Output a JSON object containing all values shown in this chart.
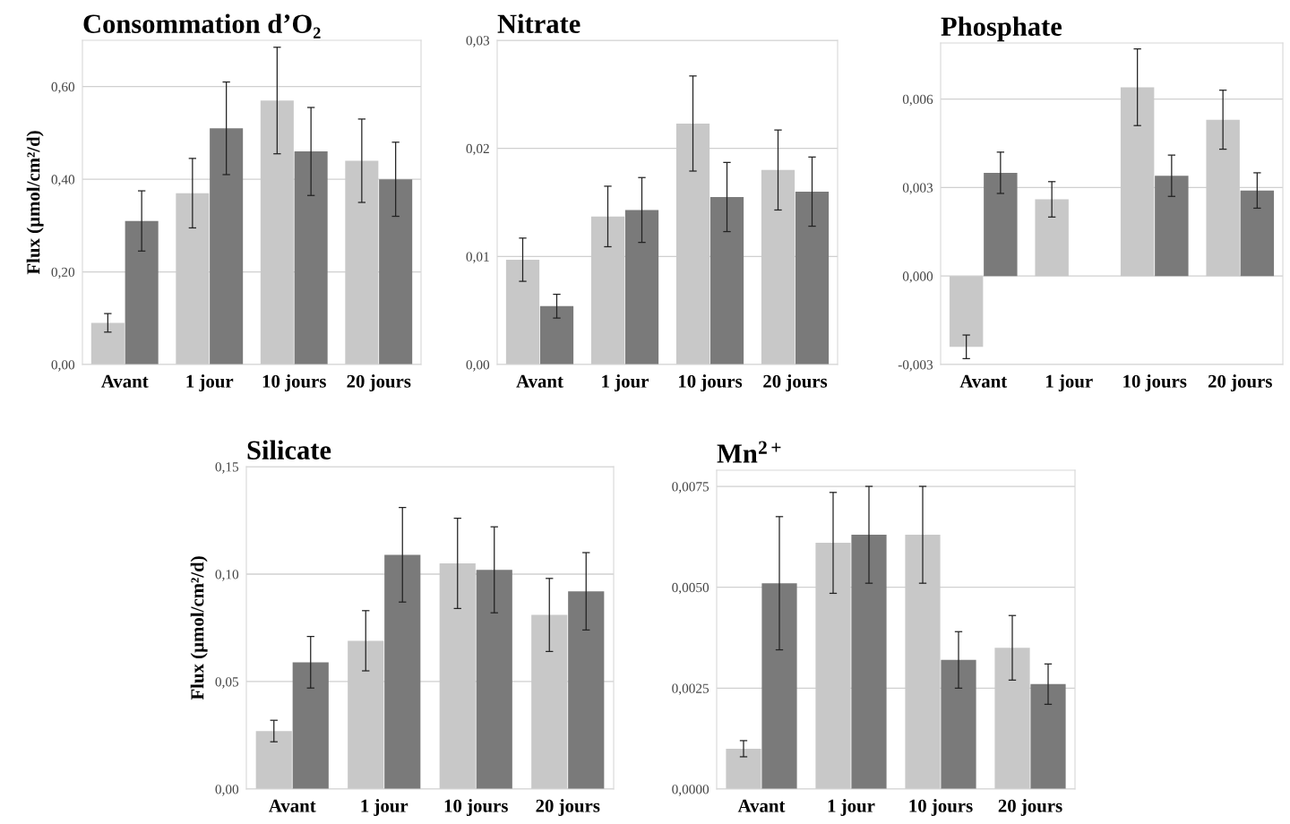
{
  "chart_data": [
    {
      "type": "bar",
      "title": "Consommation d’O₂",
      "ylabel": "Flux (µmol/cm²/d)",
      "categories": [
        "Avant",
        "1 jour",
        "10 jours",
        "20 jours"
      ],
      "ylim": [
        0,
        0.7
      ],
      "yticks": [
        {
          "value": 0,
          "label": "0,00"
        },
        {
          "value": 0.2,
          "label": "0,20"
        },
        {
          "value": 0.4,
          "label": "0,40"
        },
        {
          "value": 0.6,
          "label": "0,60"
        }
      ],
      "grid": "y",
      "series": [
        {
          "color": "#c8c8c8",
          "values": [
            0.09,
            0.37,
            0.57,
            0.44
          ],
          "errors": [
            0.02,
            0.075,
            0.115,
            0.09
          ]
        },
        {
          "color": "#7a7a7a",
          "values": [
            0.31,
            0.51,
            0.46,
            0.4
          ],
          "errors": [
            0.065,
            0.1,
            0.095,
            0.08
          ]
        }
      ]
    },
    {
      "type": "bar",
      "title": "Nitrate",
      "categories": [
        "Avant",
        "1 jour",
        "10 jours",
        "20 jours"
      ],
      "ylim": [
        0,
        0.03
      ],
      "yticks": [
        {
          "value": 0,
          "label": "0,00"
        },
        {
          "value": 0.01,
          "label": "0,01"
        },
        {
          "value": 0.02,
          "label": "0,02"
        },
        {
          "value": 0.03,
          "label": "0,03"
        }
      ],
      "grid": "y",
      "series": [
        {
          "color": "#c8c8c8",
          "values": [
            0.0097,
            0.0137,
            0.0223,
            0.018
          ],
          "errors": [
            0.002,
            0.0028,
            0.0044,
            0.0037
          ]
        },
        {
          "color": "#7a7a7a",
          "values": [
            0.0054,
            0.0143,
            0.0155,
            0.016
          ],
          "errors": [
            0.0011,
            0.003,
            0.0032,
            0.0032
          ]
        }
      ]
    },
    {
      "type": "bar",
      "title": "Phosphate",
      "categories": [
        "Avant",
        "1 jour",
        "10 jours",
        "20 jours"
      ],
      "ylim": [
        -0.003,
        0.0079
      ],
      "yticks": [
        {
          "value": -0.003,
          "label": "-0,003"
        },
        {
          "value": 0,
          "label": "0,000"
        },
        {
          "value": 0.003,
          "label": "0,003"
        },
        {
          "value": 0.006,
          "label": "0,006"
        }
      ],
      "grid": "y",
      "series": [
        {
          "color": "#c8c8c8",
          "values": [
            -0.0024,
            0.0026,
            0.0064,
            0.0053
          ],
          "errors": [
            0.0004,
            0.0006,
            0.0013,
            0.001
          ]
        },
        {
          "color": "#7a7a7a",
          "values": [
            0.0035,
            0,
            0.0034,
            0.0029
          ],
          "errors": [
            0.0007,
            null,
            0.0007,
            0.0006
          ]
        }
      ]
    },
    {
      "type": "bar",
      "title": "Silicate",
      "ylabel": "Flux (µmol/cm²/d)",
      "categories": [
        "Avant",
        "1 jour",
        "10 jours",
        "20 jours"
      ],
      "ylim": [
        0,
        0.15
      ],
      "yticks": [
        {
          "value": 0,
          "label": "0,00"
        },
        {
          "value": 0.05,
          "label": "0,05"
        },
        {
          "value": 0.1,
          "label": "0,10"
        },
        {
          "value": 0.15,
          "label": "0,15"
        }
      ],
      "grid": "y",
      "series": [
        {
          "color": "#c8c8c8",
          "values": [
            0.027,
            0.069,
            0.105,
            0.081
          ],
          "errors": [
            0.005,
            0.014,
            0.021,
            0.017
          ]
        },
        {
          "color": "#7a7a7a",
          "values": [
            0.059,
            0.109,
            0.102,
            0.092
          ],
          "errors": [
            0.012,
            0.022,
            0.02,
            0.018
          ]
        }
      ]
    },
    {
      "type": "bar",
      "title": "Mn$^{2+}$",
      "categories": [
        "Avant",
        "1 jour",
        "10 jours",
        "20 jours"
      ],
      "ylim": [
        0,
        0.0079
      ],
      "yticks": [
        {
          "value": 0,
          "label": "0,0000"
        },
        {
          "value": 0.0025,
          "label": "0,0025"
        },
        {
          "value": 0.005,
          "label": "0,0050"
        },
        {
          "value": 0.0075,
          "label": "0,0075"
        }
      ],
      "grid": "y",
      "series": [
        {
          "color": "#c8c8c8",
          "values": [
            0.001,
            0.0061,
            0.0063,
            0.0035
          ],
          "errors": [
            0.0002,
            0.00125,
            0.0012,
            0.0008
          ]
        },
        {
          "color": "#7a7a7a",
          "values": [
            0.0051,
            0.0063,
            0.0032,
            0.0026
          ],
          "errors": [
            0.00165,
            0.0012,
            0.0007,
            0.0005
          ]
        }
      ]
    }
  ]
}
